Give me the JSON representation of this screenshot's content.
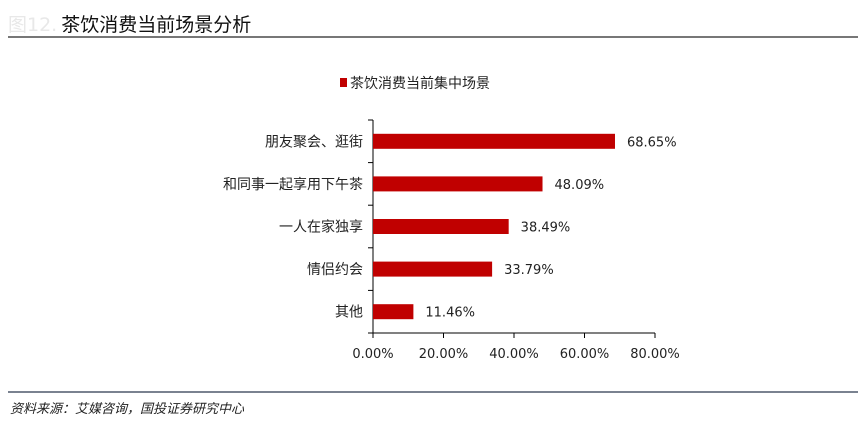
{
  "header": {
    "figure_label": "图12.",
    "title": "茶饮消费当前场景分析"
  },
  "footer": {
    "source": "资料来源：艾媒咨询，国投证券研究中心"
  },
  "chart_data": {
    "type": "bar",
    "orientation": "horizontal",
    "categories": [
      "朋友聚会、逛街",
      "和同事一起享用下午茶",
      "一人在家独享",
      "情侣约会",
      "其他"
    ],
    "series": [
      {
        "name": "茶饮消费当前集中场景",
        "values": [
          68.65,
          48.09,
          38.49,
          33.79,
          11.46
        ],
        "color": "#c00000"
      }
    ],
    "data_labels": [
      "68.65%",
      "48.09%",
      "38.49%",
      "33.79%",
      "11.46%"
    ],
    "xlim": [
      0,
      80
    ],
    "xticks": [
      0,
      20,
      40,
      60,
      80
    ],
    "xtick_labels": [
      "0.00%",
      "20.00%",
      "40.00%",
      "60.00%",
      "80.00%"
    ],
    "grid": false,
    "legend": "top-center"
  }
}
